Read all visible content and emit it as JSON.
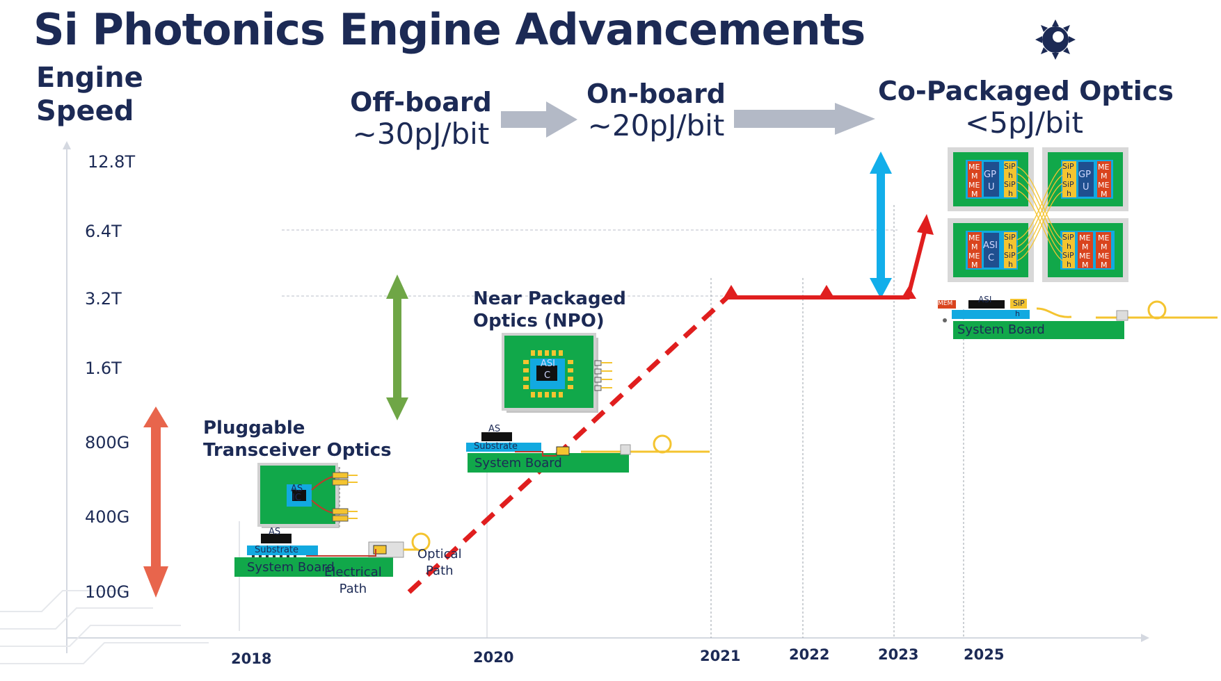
{
  "title": "Si Photonics Engine Advancements",
  "y_axis": {
    "label_line1": "Engine",
    "label_line2": "Speed"
  },
  "chart_data": {
    "type": "line",
    "title": "Si Photonics Engine Advancements",
    "ylabel": "Engine Speed",
    "xlabel": "",
    "y_ticks": [
      "12.8T",
      "6.4T",
      "3.2T",
      "1.6T",
      "800G",
      "400G",
      "100G"
    ],
    "x_ticks": [
      "2018",
      "2020",
      "2021",
      "2022",
      "2023",
      "2025"
    ],
    "series": [
      {
        "style": "dashed",
        "color": "#e01e1e",
        "points": [
          [
            "2019",
            "100G"
          ],
          [
            "2021",
            "3.2T"
          ]
        ]
      },
      {
        "style": "solid",
        "color": "#e01e1e",
        "points": [
          [
            "2021",
            "3.2T"
          ],
          [
            "2023",
            "3.2T"
          ],
          [
            "2024",
            "6.4T"
          ]
        ]
      }
    ]
  },
  "stages": [
    {
      "name": "Off-board",
      "energy": "~30pJ/bit"
    },
    {
      "name": "On-board",
      "energy": "~20pJ/bit"
    },
    {
      "name": "Co-Packaged Optics",
      "energy": "<5pJ/bit"
    }
  ],
  "labels": {
    "pluggable_line1": "Pluggable",
    "pluggable_line2": "Transceiver Optics",
    "npo_line1": "Near Packaged",
    "npo_line2": "Optics (NPO)",
    "system_board": "System Board",
    "substrate": "Substrate",
    "electrical_line1": "Electrical",
    "electrical_line2": "Path",
    "optical_line1": "Optical",
    "optical_line2": "Path",
    "asic_a": "AS",
    "asic_b": "IC",
    "asi": "ASI",
    "c": "C",
    "gp": "GP",
    "u": "U",
    "me": "ME",
    "m": "M",
    "sip": "SiP",
    "h": "h",
    "mem": "MEM"
  },
  "colors": {
    "title": "#1c2a55",
    "red_line": "#e01e1e",
    "orange_arrow": "#e8654c",
    "green_arrow": "#6fa646",
    "blue_arrow": "#12aeea",
    "gray_arrow": "#b3b9c6",
    "board_green": "#11a84a",
    "chip_blue": "#12a9e0",
    "gold": "#f4c430"
  },
  "icons": [
    "logo-gear-icon"
  ]
}
